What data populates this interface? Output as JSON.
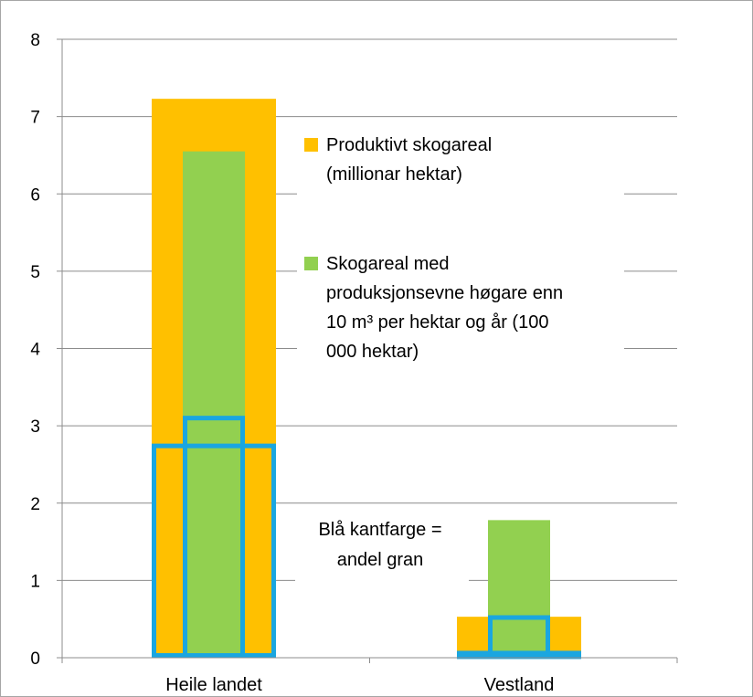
{
  "chart_data": {
    "type": "bar",
    "categories": [
      "Heile landet",
      "Vestland"
    ],
    "ylim": [
      0,
      8
    ],
    "yticks": [
      "0",
      "1",
      "2",
      "3",
      "4",
      "5",
      "6",
      "7",
      "8"
    ],
    "grid": true,
    "legend_position": "right",
    "series": [
      {
        "name": "Produktivt skogareal (millionar hektar)",
        "name_lines": [
          "Produktivt skogareal",
          "(millionar hektar)"
        ],
        "values": [
          7.23,
          0.53
        ],
        "color": "#ffc000",
        "outline_values": [
          2.74,
          0.06
        ]
      },
      {
        "name": "Skogareal med produksjonsevne høgare enn 10 m³ per hektar og år (100 000 hektar)",
        "name_lines": [
          "Skogareal med",
          "produksjonsevne høgare enn",
          "10 m³ per hektar og år (100",
          "000 hektar)"
        ],
        "values": [
          6.55,
          1.78
        ],
        "color": "#92d050",
        "outline_values": [
          3.1,
          0.52
        ]
      }
    ],
    "outline_color": "#1aa6e0",
    "annotation_lines": [
      "Blå kantfarge =",
      "andel gran"
    ]
  }
}
